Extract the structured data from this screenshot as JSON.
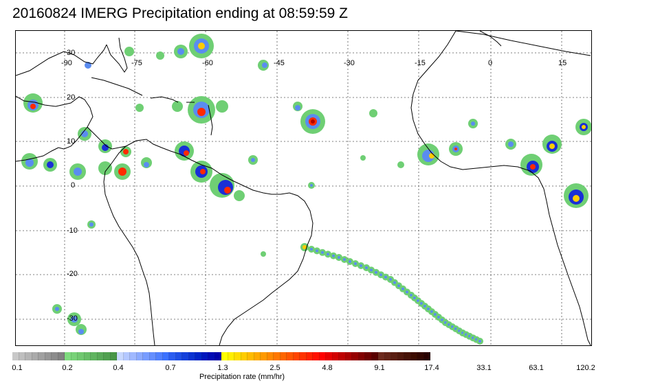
{
  "title": "20160824 IMERG Precipitation ending at 08:59:59 Z",
  "map": {
    "lon_labels": [
      "-90",
      "-75",
      "-60",
      "-45",
      "-30",
      "-15",
      "0",
      "15"
    ],
    "lat_labels": [
      "30",
      "20",
      "10",
      "0",
      "-10",
      "-20",
      "-30"
    ],
    "gridline_style": "dotted",
    "coastline_color": "#000000"
  },
  "colorbar": {
    "title": "Precipitation rate (mm/hr)",
    "tick_labels": [
      "0.1",
      "0.2",
      "0.4",
      "0.7",
      "1.3",
      "2.5",
      "4.8",
      "9.1",
      "17.4",
      "33.1",
      "63.1",
      "120.2"
    ],
    "colors": [
      "#c8c8c8",
      "#bebebe",
      "#b4b4b4",
      "#aaaaaa",
      "#a0a0a0",
      "#969696",
      "#8c8c8c",
      "#828282",
      "#7fdc7f",
      "#78d278",
      "#70c870",
      "#68be68",
      "#60b460",
      "#58aa58",
      "#50a050",
      "#489648",
      "#c8d8ff",
      "#b4c8ff",
      "#a0b8ff",
      "#8caaff",
      "#789cff",
      "#648eff",
      "#5080ff",
      "#3c72ff",
      "#2a5cf0",
      "#1e4ee6",
      "#1440dc",
      "#0a32d2",
      "#0024c8",
      "#0016be",
      "#000ab4",
      "#0000aa",
      "#ffff00",
      "#ffee00",
      "#ffdd00",
      "#ffcc00",
      "#ffbb00",
      "#ffaa00",
      "#ff9900",
      "#ff8800",
      "#ff7700",
      "#ff6600",
      "#ff5500",
      "#ff4400",
      "#ff3300",
      "#ff2200",
      "#ff1100",
      "#ff0000",
      "#e60000",
      "#d20000",
      "#be0000",
      "#aa0000",
      "#960000",
      "#820000",
      "#6e0000",
      "#5a0000",
      "#6e2a1e",
      "#642418",
      "#5a1e12",
      "#50180c",
      "#461206",
      "#3c0c00",
      "#320600",
      "#280000"
    ]
  },
  "precip_colors": {
    "light": "#6fcf74",
    "moderate": "#5a8cf0",
    "heavy": "#1a2fd6",
    "intense": "#ffcc00",
    "extreme": "#ff2a00",
    "core": "#b40000"
  }
}
